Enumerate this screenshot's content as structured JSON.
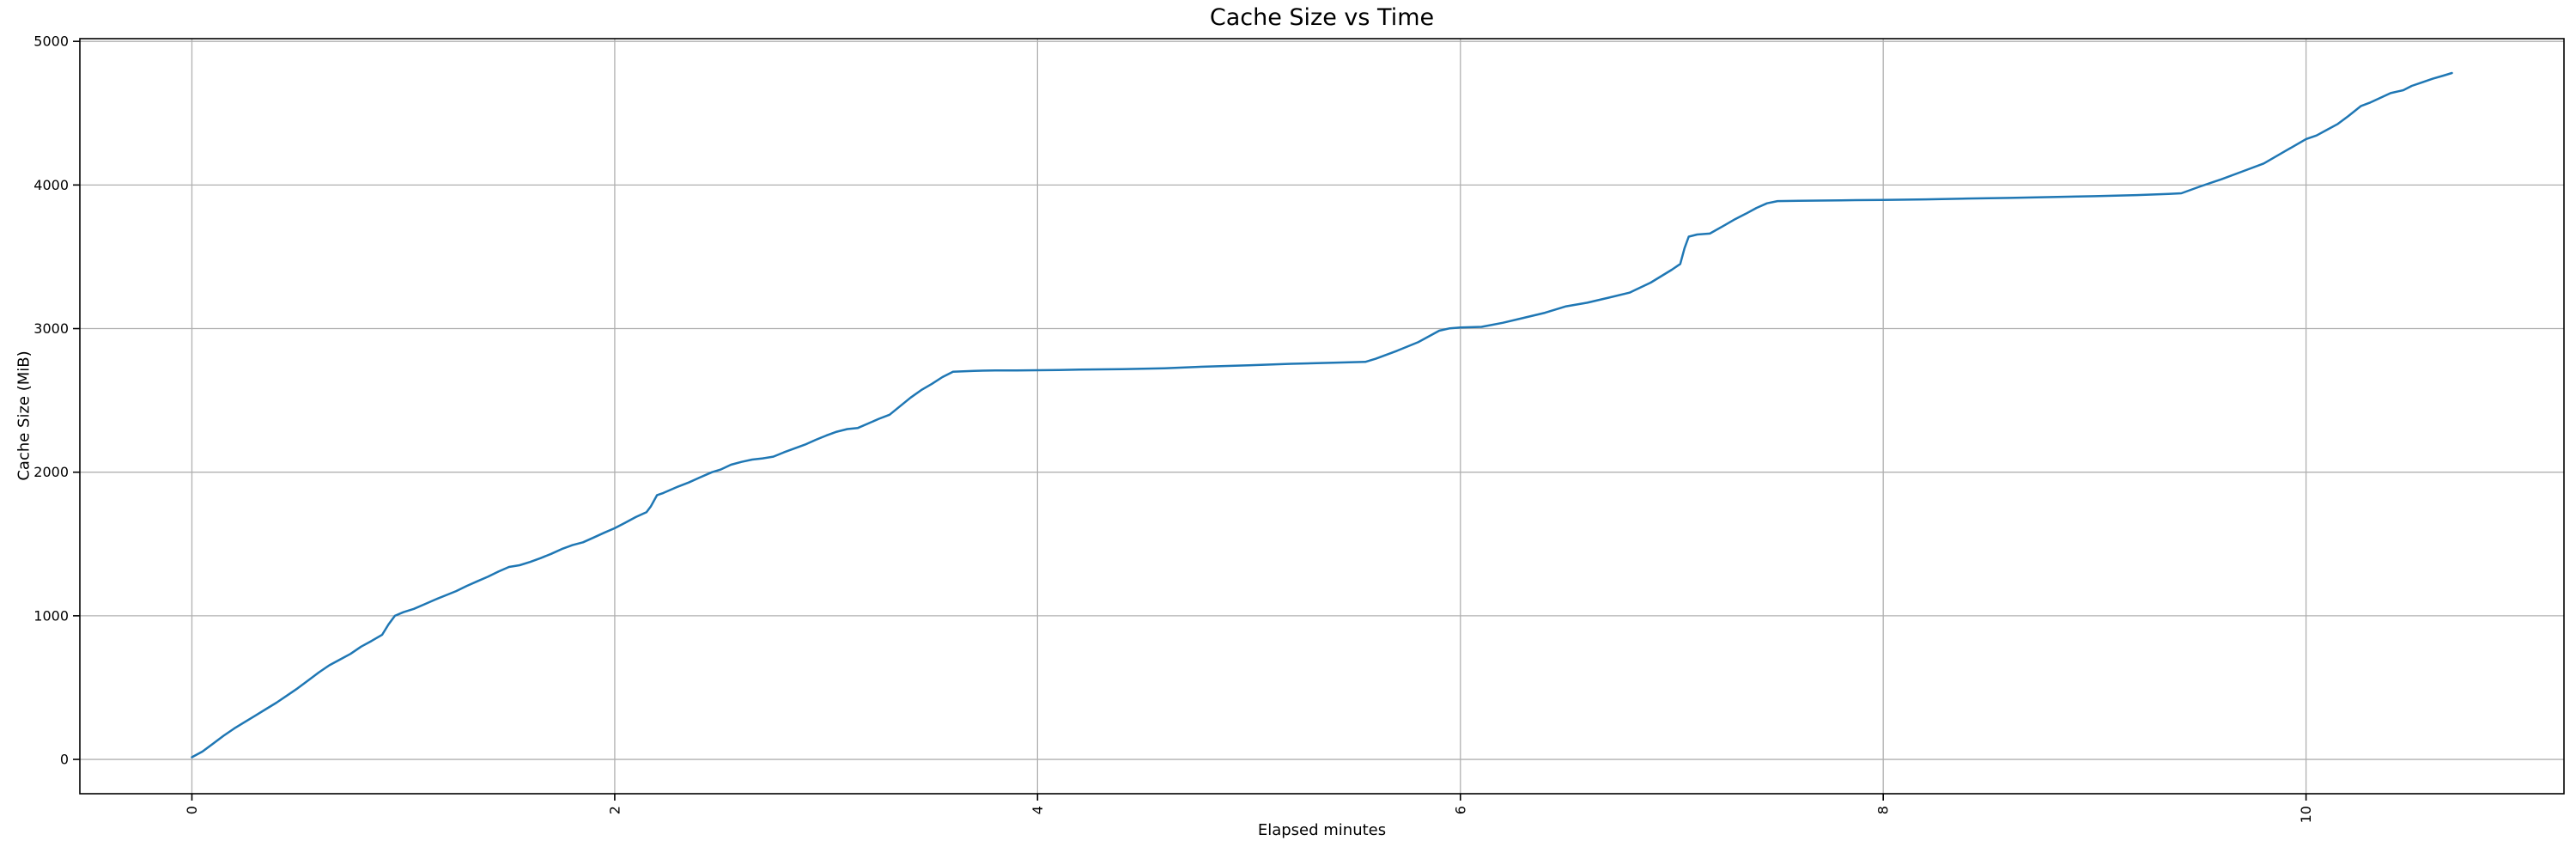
{
  "title": "Cache Size vs Time",
  "chart_data": {
    "type": "line",
    "title": "Cache Size vs Time",
    "xlabel": "Elapsed minutes",
    "ylabel": "Cache Size (MiB)",
    "x_ticks": [
      0,
      2,
      4,
      6,
      8,
      10
    ],
    "y_ticks": [
      0,
      1000,
      2000,
      3000,
      4000,
      5000
    ],
    "xlim": [
      -0.53,
      11.22
    ],
    "ylim": [
      -239,
      5019
    ],
    "grid": true,
    "legend_position": "none",
    "x_tick_rotation_deg": 90,
    "colors": {
      "line": "#1f77b4",
      "grid": "#b0b0b0",
      "spine": "#000000",
      "text": "#000000",
      "background": "#ffffff"
    },
    "series": [
      {
        "name": "cache-size",
        "points": [
          [
            0.0,
            15
          ],
          [
            0.05,
            55
          ],
          [
            0.1,
            110
          ],
          [
            0.15,
            165
          ],
          [
            0.2,
            215
          ],
          [
            0.25,
            260
          ],
          [
            0.3,
            305
          ],
          [
            0.35,
            350
          ],
          [
            0.4,
            395
          ],
          [
            0.45,
            445
          ],
          [
            0.5,
            495
          ],
          [
            0.55,
            550
          ],
          [
            0.6,
            605
          ],
          [
            0.65,
            655
          ],
          [
            0.7,
            695
          ],
          [
            0.75,
            735
          ],
          [
            0.8,
            785
          ],
          [
            0.85,
            825
          ],
          [
            0.9,
            868
          ],
          [
            0.93,
            940
          ],
          [
            0.96,
            1000
          ],
          [
            1.0,
            1025
          ],
          [
            1.05,
            1048
          ],
          [
            1.1,
            1080
          ],
          [
            1.15,
            1112
          ],
          [
            1.2,
            1142
          ],
          [
            1.25,
            1172
          ],
          [
            1.3,
            1208
          ],
          [
            1.35,
            1240
          ],
          [
            1.4,
            1272
          ],
          [
            1.45,
            1308
          ],
          [
            1.5,
            1340
          ],
          [
            1.55,
            1352
          ],
          [
            1.6,
            1375
          ],
          [
            1.65,
            1402
          ],
          [
            1.7,
            1432
          ],
          [
            1.75,
            1465
          ],
          [
            1.8,
            1492
          ],
          [
            1.85,
            1512
          ],
          [
            1.9,
            1545
          ],
          [
            1.95,
            1578
          ],
          [
            2.0,
            1610
          ],
          [
            2.05,
            1648
          ],
          [
            2.1,
            1688
          ],
          [
            2.15,
            1722
          ],
          [
            2.17,
            1760
          ],
          [
            2.2,
            1840
          ],
          [
            2.23,
            1855
          ],
          [
            2.3,
            1900
          ],
          [
            2.35,
            1928
          ],
          [
            2.4,
            1962
          ],
          [
            2.46,
            2000
          ],
          [
            2.5,
            2018
          ],
          [
            2.55,
            2052
          ],
          [
            2.6,
            2072
          ],
          [
            2.65,
            2088
          ],
          [
            2.7,
            2096
          ],
          [
            2.75,
            2108
          ],
          [
            2.8,
            2138
          ],
          [
            2.85,
            2165
          ],
          [
            2.9,
            2192
          ],
          [
            2.95,
            2225
          ],
          [
            3.0,
            2255
          ],
          [
            3.05,
            2282
          ],
          [
            3.1,
            2300
          ],
          [
            3.15,
            2308
          ],
          [
            3.2,
            2340
          ],
          [
            3.25,
            2372
          ],
          [
            3.3,
            2400
          ],
          [
            3.35,
            2460
          ],
          [
            3.4,
            2520
          ],
          [
            3.45,
            2572
          ],
          [
            3.5,
            2615
          ],
          [
            3.55,
            2662
          ],
          [
            3.6,
            2700
          ],
          [
            3.7,
            2706
          ],
          [
            3.8,
            2708
          ],
          [
            3.9,
            2709
          ],
          [
            4.0,
            2710
          ],
          [
            4.1,
            2712
          ],
          [
            4.2,
            2714
          ],
          [
            4.4,
            2718
          ],
          [
            4.6,
            2724
          ],
          [
            4.8,
            2736
          ],
          [
            5.0,
            2745
          ],
          [
            5.2,
            2755
          ],
          [
            5.4,
            2762
          ],
          [
            5.55,
            2768
          ],
          [
            5.6,
            2790
          ],
          [
            5.7,
            2845
          ],
          [
            5.8,
            2905
          ],
          [
            5.9,
            2985
          ],
          [
            5.95,
            3002
          ],
          [
            6.0,
            3008
          ],
          [
            6.1,
            3012
          ],
          [
            6.2,
            3040
          ],
          [
            6.3,
            3075
          ],
          [
            6.4,
            3110
          ],
          [
            6.5,
            3155
          ],
          [
            6.6,
            3180
          ],
          [
            6.7,
            3215
          ],
          [
            6.8,
            3250
          ],
          [
            6.9,
            3320
          ],
          [
            7.0,
            3410
          ],
          [
            7.04,
            3450
          ],
          [
            7.06,
            3560
          ],
          [
            7.08,
            3640
          ],
          [
            7.12,
            3655
          ],
          [
            7.18,
            3662
          ],
          [
            7.25,
            3720
          ],
          [
            7.3,
            3762
          ],
          [
            7.35,
            3800
          ],
          [
            7.4,
            3840
          ],
          [
            7.45,
            3872
          ],
          [
            7.5,
            3888
          ],
          [
            7.6,
            3890
          ],
          [
            7.8,
            3893
          ],
          [
            8.0,
            3896
          ],
          [
            8.2,
            3900
          ],
          [
            8.4,
            3906
          ],
          [
            8.6,
            3910
          ],
          [
            8.8,
            3916
          ],
          [
            9.0,
            3922
          ],
          [
            9.2,
            3930
          ],
          [
            9.35,
            3938
          ],
          [
            9.41,
            3942
          ],
          [
            9.5,
            3990
          ],
          [
            9.55,
            4015
          ],
          [
            9.6,
            4040
          ],
          [
            9.7,
            4095
          ],
          [
            9.8,
            4150
          ],
          [
            9.9,
            4235
          ],
          [
            10.0,
            4320
          ],
          [
            10.05,
            4345
          ],
          [
            10.1,
            4385
          ],
          [
            10.15,
            4425
          ],
          [
            10.2,
            4480
          ],
          [
            10.26,
            4550
          ],
          [
            10.3,
            4572
          ],
          [
            10.4,
            4640
          ],
          [
            10.46,
            4660
          ],
          [
            10.5,
            4690
          ],
          [
            10.55,
            4715
          ],
          [
            10.6,
            4740
          ],
          [
            10.65,
            4762
          ],
          [
            10.69,
            4780
          ]
        ]
      }
    ]
  }
}
